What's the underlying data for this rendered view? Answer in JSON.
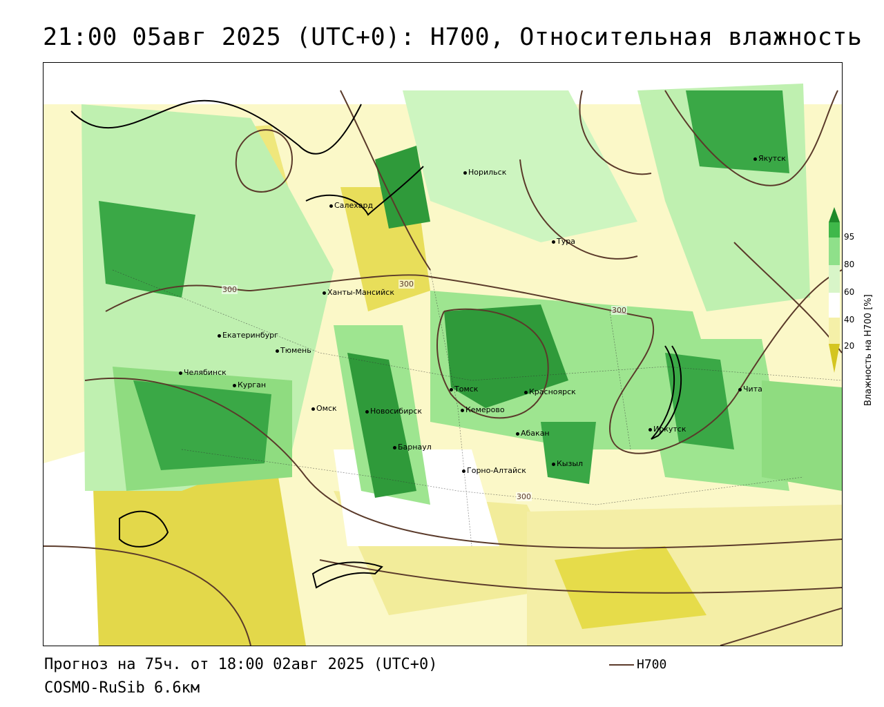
{
  "title": "21:00 05авг 2025 (UTC+0): H700, Относительная влажность",
  "footer": {
    "forecast": "Прогноз на 75ч. от 18:00 02авг 2025 (UTC+0)",
    "model": "COSMO-RuSib 6.6км"
  },
  "legend": {
    "line_label": "H700",
    "line_color": "#5a3a2a"
  },
  "colorbar": {
    "title": "Влажность на H700 [%]",
    "ticks": [
      "95",
      "80",
      "60",
      "40",
      "20"
    ],
    "colors": [
      "#1f8a2a",
      "#3fb84a",
      "#8fe08a",
      "#d8f5c8",
      "#ffffff",
      "#f5f0a8",
      "#e6dc4a",
      "#d4c520"
    ]
  },
  "contour_labels": [
    "300",
    "300",
    "300",
    "300"
  ],
  "cities": [
    {
      "name": "Норильск"
    },
    {
      "name": "Якутск"
    },
    {
      "name": "Салехард"
    },
    {
      "name": "Тура"
    },
    {
      "name": "Ханты-Мансийск"
    },
    {
      "name": "Екатеринбург"
    },
    {
      "name": "Тюмень"
    },
    {
      "name": "Челябинск"
    },
    {
      "name": "Курган"
    },
    {
      "name": "Омск"
    },
    {
      "name": "Новосибирск"
    },
    {
      "name": "Томск"
    },
    {
      "name": "Кемерово"
    },
    {
      "name": "Красноярск"
    },
    {
      "name": "Барнаул"
    },
    {
      "name": "Абакан"
    },
    {
      "name": "Горно-Алтайск"
    },
    {
      "name": "Кызыл"
    },
    {
      "name": "Иркутск"
    },
    {
      "name": "Чита"
    }
  ]
}
